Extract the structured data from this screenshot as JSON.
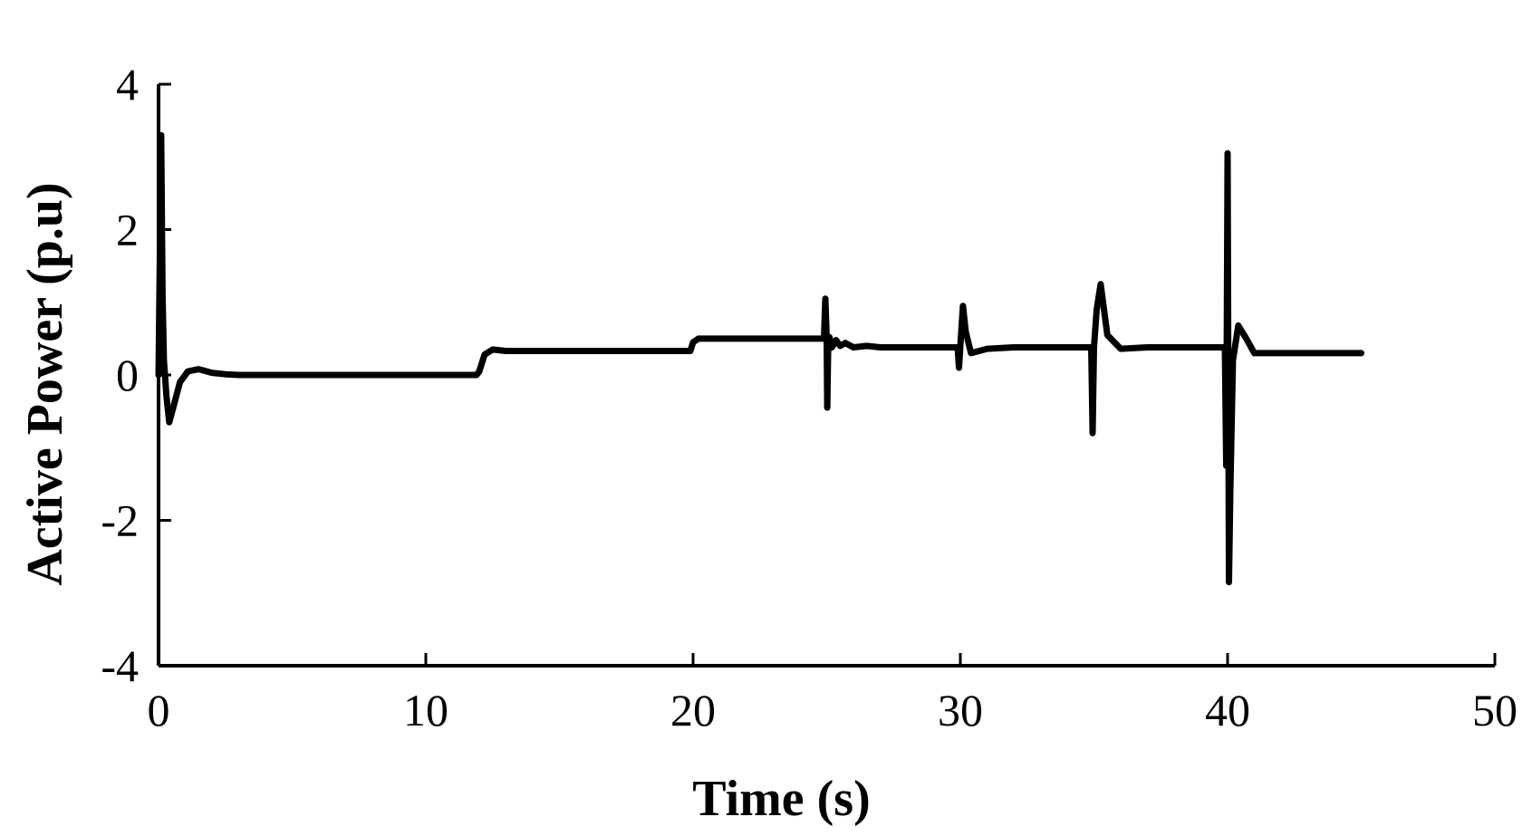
{
  "chart_data": {
    "type": "line",
    "xlabel": "Time (s)",
    "ylabel": "Active Power (p.u)",
    "xlim": [
      0,
      50
    ],
    "ylim": [
      -4,
      4
    ],
    "x_ticks": [
      0,
      10,
      20,
      30,
      40,
      50
    ],
    "x_tick_labels": [
      "0",
      "10",
      "20",
      "30",
      "40",
      "50"
    ],
    "y_ticks": [
      4,
      2,
      0,
      -2,
      -4
    ],
    "y_tick_labels": [
      "4",
      "2",
      "0",
      "-2",
      "-4"
    ],
    "grid": false,
    "series": [
      {
        "color": "#000000",
        "x": [
          0,
          0.1,
          0.15,
          0.2,
          0.3,
          0.4,
          0.55,
          0.8,
          1.1,
          1.5,
          2.0,
          2.5,
          3.0,
          11.9,
          12.0,
          12.2,
          12.5,
          13.0,
          19.9,
          20.0,
          20.2,
          20.5,
          24.9,
          24.95,
          25.0,
          25.02,
          25.05,
          25.1,
          25.2,
          25.35,
          25.5,
          25.7,
          26.0,
          26.5,
          27.0,
          28.0,
          29.9,
          29.95,
          30.0,
          30.1,
          30.2,
          30.4,
          31.0,
          32.0,
          34.9,
          34.95,
          35.0,
          35.1,
          35.25,
          35.5,
          36.0,
          37.0,
          39.8,
          39.9,
          39.95,
          40.0,
          40.05,
          40.1,
          40.2,
          40.4,
          40.7,
          41.0,
          41.5,
          42.0,
          45.0
        ],
        "y": [
          0,
          3.3,
          1.1,
          0.2,
          -0.3,
          -0.65,
          -0.45,
          -0.1,
          0.05,
          0.08,
          0.03,
          0.01,
          0,
          0,
          0.05,
          0.28,
          0.35,
          0.33,
          0.33,
          0.45,
          0.5,
          0.5,
          0.5,
          1.05,
          0.5,
          -0.45,
          0.3,
          0.52,
          0.38,
          0.48,
          0.4,
          0.44,
          0.38,
          0.4,
          0.38,
          0.38,
          0.38,
          0.1,
          0.4,
          0.95,
          0.6,
          0.3,
          0.36,
          0.38,
          0.38,
          -0.8,
          0.38,
          0.9,
          1.25,
          0.55,
          0.36,
          0.38,
          0.38,
          0.38,
          -1.25,
          3.05,
          -2.85,
          -1.6,
          0.2,
          0.68,
          0.5,
          0.3,
          0.3,
          0.3,
          0.3
        ]
      }
    ]
  }
}
